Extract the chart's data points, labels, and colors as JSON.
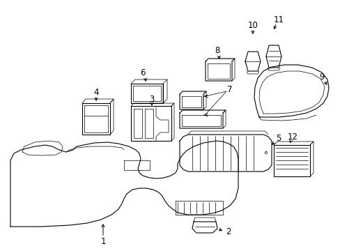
{
  "bg": "#ffffff",
  "lc": "#000000",
  "fig_w": 4.89,
  "fig_h": 3.6,
  "dpi": 100,
  "lw": 0.8,
  "tlw": 0.5
}
